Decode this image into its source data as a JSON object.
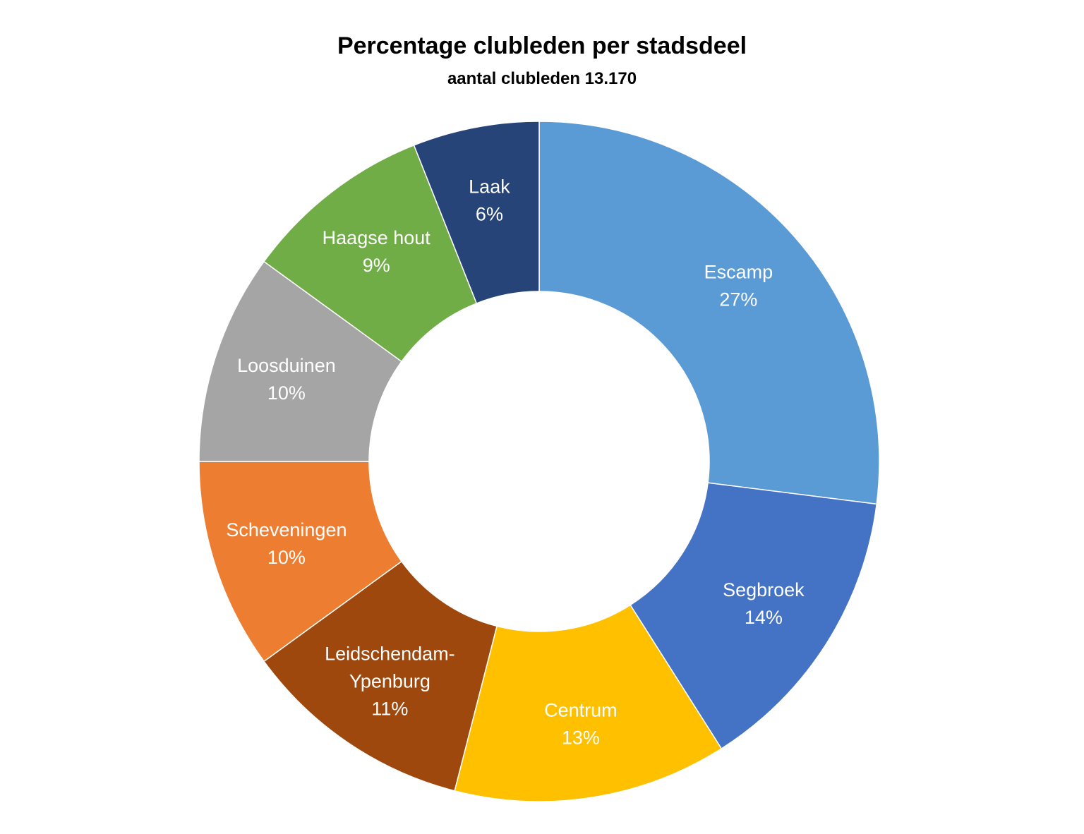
{
  "chart_data": {
    "type": "pie",
    "donut": true,
    "title": "Percentage clubleden per stadsdeel",
    "subtitle": "aantal clubleden 13.170",
    "categories": [
      "Escamp",
      "Segbroek",
      "Centrum",
      "Leidschendam-Ypenburg",
      "Scheveningen",
      "Loosduinen",
      "Haagse hout",
      "Laak"
    ],
    "label_lines": [
      [
        "Escamp"
      ],
      [
        "Segbroek"
      ],
      [
        "Centrum"
      ],
      [
        "Leidschendam-",
        "Ypenburg"
      ],
      [
        "Scheveningen"
      ],
      [
        "Loosduinen"
      ],
      [
        "Haagse hout"
      ],
      [
        "Laak"
      ]
    ],
    "values": [
      27,
      14,
      13,
      11,
      10,
      10,
      9,
      6
    ],
    "value_labels": [
      "27%",
      "14%",
      "13%",
      "11%",
      "10%",
      "10%",
      "9%",
      "6%"
    ],
    "colors": [
      "#5B9BD5",
      "#4472C4",
      "#FFC000",
      "#9E480E",
      "#ED7D31",
      "#A5A5A5",
      "#70AD47",
      "#264478"
    ],
    "legend": "none"
  }
}
